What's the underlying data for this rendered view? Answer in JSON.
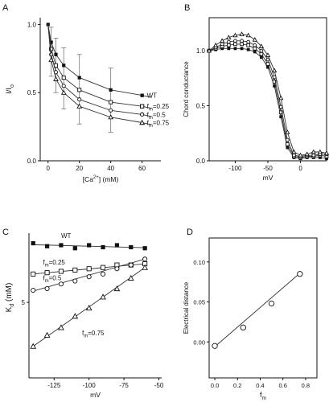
{
  "chart_data": [
    {
      "panel": "A",
      "type": "line",
      "xlabel": "[Ca",
      "xlabel_sup": "2+",
      "xlabel_tail": "] (mM)",
      "ylabel": "I/I",
      "ylabel_sub": "o",
      "xlim": [
        -5,
        72
      ],
      "ylim": [
        0,
        1.05
      ],
      "xticks": [
        "0",
        "20",
        "40",
        "60"
      ],
      "yticks": [
        "0.0",
        "0.5",
        "1.0"
      ],
      "x": [
        0,
        2,
        5,
        10,
        20,
        40,
        60
      ],
      "series": [
        {
          "name": "WT",
          "label_main": "WT",
          "label_sub": "",
          "label_tail": "",
          "marker": "square-filled",
          "values": [
            1.0,
            0.87,
            0.78,
            0.7,
            0.61,
            0.52,
            0.48
          ]
        },
        {
          "name": "fm=0.25",
          "label_main": "f",
          "label_sub": "m",
          "label_tail": "=0.25",
          "marker": "square-open",
          "values": [
            1.0,
            0.82,
            0.7,
            0.61,
            0.52,
            0.43,
            0.4
          ]
        },
        {
          "name": "fm=0.5",
          "label_main": "f",
          "label_sub": "m",
          "label_tail": "=0.5",
          "marker": "circle-open",
          "values": [
            1.0,
            0.78,
            0.65,
            0.55,
            0.45,
            0.37,
            0.34
          ]
        },
        {
          "name": "fm=0.75",
          "label_main": "f",
          "label_sub": "m",
          "label_tail": "=0.75",
          "marker": "triangle-open",
          "values": [
            1.0,
            0.74,
            0.6,
            0.5,
            0.4,
            0.32,
            0.28
          ]
        }
      ],
      "error_bars": [
        {
          "x": 2,
          "lo": 0.62,
          "hi": 0.98
        },
        {
          "x": 5,
          "lo": 0.5,
          "hi": 0.9
        },
        {
          "x": 10,
          "lo": 0.38,
          "hi": 0.83
        },
        {
          "x": 20,
          "lo": 0.27,
          "hi": 0.78
        },
        {
          "x": 40,
          "lo": 0.21,
          "hi": 0.68
        }
      ]
    },
    {
      "panel": "B",
      "type": "line",
      "xlabel": "mV",
      "ylabel": "Chord conductance",
      "xlim": [
        -140,
        40
      ],
      "ylim": [
        0,
        1.3
      ],
      "xticks": [
        "-100",
        "-50",
        "0"
      ],
      "yticks": [
        "0.0",
        "0.5",
        "1.0"
      ],
      "x": [
        -140,
        -130,
        -120,
        -110,
        -100,
        -90,
        -80,
        -70,
        -60,
        -50,
        -40,
        -30,
        -20,
        -10,
        0,
        10,
        20,
        30,
        40
      ],
      "series": [
        {
          "name": "WT",
          "marker": "square-filled",
          "values": [
            1.0,
            1.01,
            1.02,
            1.02,
            1.02,
            1.02,
            1.01,
            0.99,
            0.94,
            0.85,
            0.68,
            0.4,
            0.12,
            0.03,
            0.02,
            0.03,
            0.03,
            0.03,
            0.02
          ]
        },
        {
          "name": "fm=0.25",
          "marker": "square-open",
          "values": [
            1.0,
            1.02,
            1.04,
            1.05,
            1.06,
            1.06,
            1.05,
            1.02,
            0.97,
            0.88,
            0.72,
            0.44,
            0.15,
            0.04,
            0.03,
            0.04,
            0.04,
            0.05,
            0.04
          ]
        },
        {
          "name": "fm=0.5",
          "marker": "circle-open",
          "values": [
            1.0,
            1.03,
            1.06,
            1.08,
            1.09,
            1.09,
            1.08,
            1.05,
            1.0,
            0.92,
            0.76,
            0.49,
            0.19,
            0.05,
            0.04,
            0.05,
            0.05,
            0.06,
            0.06
          ]
        },
        {
          "name": "fm=0.75",
          "marker": "triangle-open",
          "values": [
            1.0,
            1.05,
            1.09,
            1.12,
            1.14,
            1.15,
            1.14,
            1.1,
            1.04,
            0.96,
            0.82,
            0.57,
            0.26,
            0.08,
            0.05,
            0.06,
            0.08,
            0.08,
            0.07
          ]
        }
      ]
    },
    {
      "panel": "C",
      "type": "scatter",
      "xlabel": "mV",
      "ylabel": "K",
      "ylabel_sub": "d",
      "ylabel_tail": " (mM)",
      "xlim": [
        -143,
        -48
      ],
      "ylim": [
        2.2,
        10.6
      ],
      "ylog": true,
      "xticks": [
        "-125",
        "-100",
        "-75",
        "-50"
      ],
      "yticks": [
        "5"
      ],
      "x": [
        -140,
        -130,
        -120,
        -110,
        -100,
        -90,
        -80,
        -70,
        -60
      ],
      "series": [
        {
          "name": "WT",
          "label_main": "WT",
          "label_sub": "",
          "label_tail": "",
          "marker": "square-filled",
          "values": [
            9.5,
            9.2,
            9.3,
            9.0,
            9.3,
            9.1,
            9.3,
            9.1,
            9.0
          ],
          "fit": [
            9.35,
            9.05
          ]
        },
        {
          "name": "fm=0.25",
          "label_main": "f",
          "label_sub": "m",
          "label_tail": "=0.25",
          "marker": "square-open",
          "values": [
            6.8,
            6.9,
            7.0,
            7.1,
            7.2,
            7.3,
            7.5,
            7.5,
            7.6
          ],
          "fit": [
            6.8,
            7.6
          ]
        },
        {
          "name": "fm=0.5",
          "label_main": "f",
          "label_sub": "m",
          "label_tail": "=0.5",
          "marker": "circle-open",
          "values": [
            5.7,
            5.8,
            6.1,
            6.3,
            6.6,
            6.8,
            7.2,
            7.5,
            8.0
          ],
          "fit": [
            5.65,
            8.0
          ]
        },
        {
          "name": "fm=0.75",
          "label_main": "f",
          "label_sub": "m",
          "label_tail": "=0.75",
          "marker": "triangle-open",
          "values": [
            3.1,
            3.5,
            3.8,
            4.3,
            4.7,
            5.3,
            5.8,
            6.5,
            7.3
          ],
          "fit": [
            3.1,
            7.3
          ]
        }
      ]
    },
    {
      "panel": "D",
      "type": "scatter",
      "xlabel": "f",
      "xlabel_sub": "m",
      "ylabel": "Electrical distance",
      "xlim": [
        -0.05,
        0.9
      ],
      "ylim": [
        -0.045,
        0.13
      ],
      "xticks": [
        "0.0",
        "0.2",
        "0.4",
        "0.6",
        "0.8"
      ],
      "yticks": [
        "0.00",
        "0.05",
        "0.10"
      ],
      "x": [
        0.0,
        0.25,
        0.5,
        0.75
      ],
      "values": [
        -0.005,
        0.018,
        0.048,
        0.085
      ],
      "fit": {
        "x0": 0.0,
        "y0": -0.006,
        "x1": 0.75,
        "y1": 0.086
      }
    }
  ]
}
